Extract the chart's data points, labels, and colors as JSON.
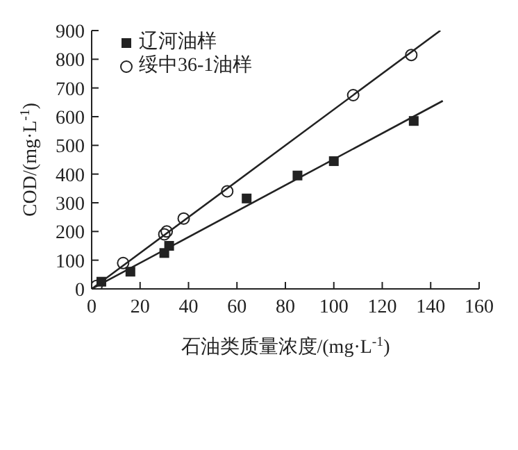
{
  "chart_data": {
    "type": "scatter",
    "xlabel": "石油类质量浓度/(mg·L$^{-1}$)",
    "ylabel": "COD/(mg·L$^{-1}$)",
    "xlim": [
      0,
      160
    ],
    "xticks": [
      0,
      20,
      40,
      60,
      80,
      100,
      120,
      140,
      160
    ],
    "ylim": [
      0,
      900
    ],
    "yticks": [
      0,
      100,
      200,
      300,
      400,
      500,
      600,
      700,
      800,
      900
    ],
    "grid": false,
    "legend": "top left",
    "series": [
      {
        "name": "辽河油样",
        "marker": "square",
        "color": "#222222",
        "x": [
          4,
          16,
          30,
          32,
          64,
          85,
          100,
          133
        ],
        "values": [
          25,
          60,
          125,
          150,
          315,
          395,
          445,
          585
        ]
      },
      {
        "name": "绥中36-1油样",
        "marker": "circle",
        "color": "#222222",
        "x": [
          2,
          13,
          30,
          31,
          38,
          56,
          108,
          132
        ],
        "values": [
          10,
          90,
          190,
          200,
          245,
          340,
          675,
          815
        ]
      },
      {
        "type": "line",
        "marker": "none",
        "color": "#222222",
        "x": [
          0,
          145
        ],
        "values": [
          0,
          655
        ]
      },
      {
        "type": "line",
        "marker": "none",
        "color": "#222222",
        "x": [
          0,
          144
        ],
        "values": [
          0,
          900
        ]
      }
    ]
  }
}
